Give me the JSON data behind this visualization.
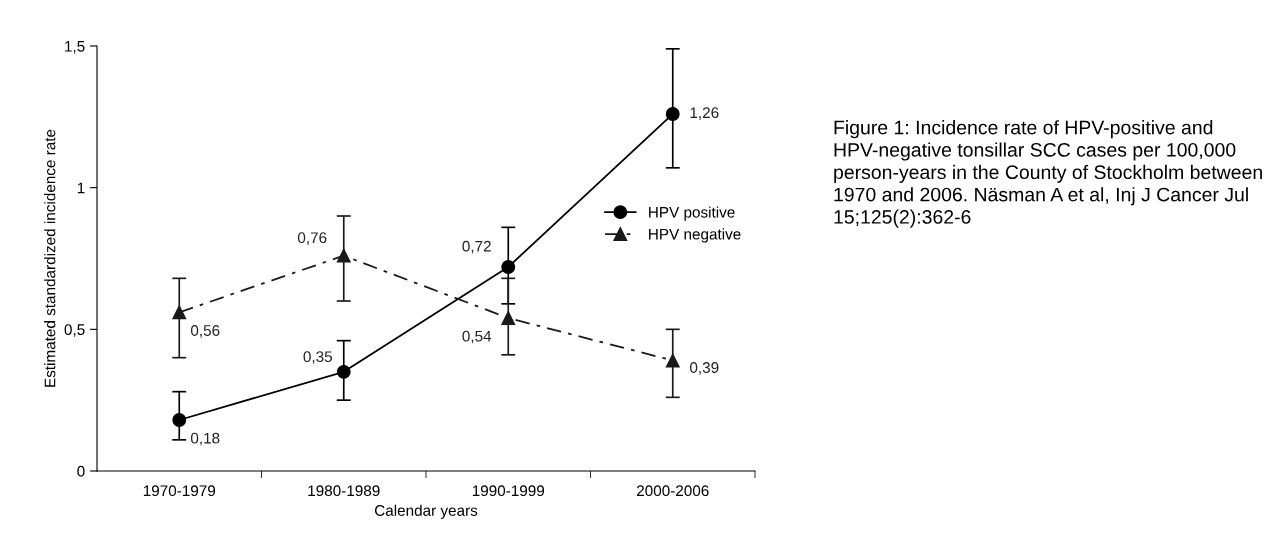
{
  "chart_data": {
    "type": "line",
    "xlabel": "Calendar years",
    "ylabel": "Estimated standardized incidence rate",
    "categories": [
      "1970-1979",
      "1980-1989",
      "1990-1999",
      "2000-2006"
    ],
    "ylim": [
      0,
      1.5
    ],
    "yticks": [
      0,
      {
        "value": 0.5,
        "label": "0,5"
      },
      1,
      {
        "value": 1.5,
        "label": "1,5"
      }
    ],
    "series": [
      {
        "name": "HPV positive",
        "color": "#000000",
        "values": [
          0.18,
          0.35,
          0.72,
          1.26
        ],
        "errors": [
          [
            0.11,
            0.28
          ],
          [
            0.25,
            0.46
          ],
          [
            0.59,
            0.86
          ],
          [
            1.07,
            1.49
          ]
        ],
        "value_labels": [
          "0,18",
          "0,35",
          "0,72",
          "1,26"
        ],
        "marker": "circle",
        "line_style": "solid"
      },
      {
        "name": "HPV negative",
        "color": "#1a1a1a",
        "values": [
          0.56,
          0.76,
          0.54,
          0.39
        ],
        "errors": [
          [
            0.4,
            0.68
          ],
          [
            0.6,
            0.9
          ],
          [
            0.41,
            0.68
          ],
          [
            0.26,
            0.5
          ]
        ],
        "value_labels": [
          "0,56",
          "0,76",
          "0,54",
          "0,39"
        ],
        "marker": "triangle",
        "line_style": "dashed"
      }
    ],
    "legend": "right",
    "grid": false,
    "annotations": [
      "Figure 1: Incidence rate of HPV-positive and HPV-negative tonsillar SCC cases per 100,000 person-years in the County of Stockholm between 1970 and 2006. Näsman A et al, Inj J Cancer Jul 15;125(2):362-6"
    ]
  }
}
